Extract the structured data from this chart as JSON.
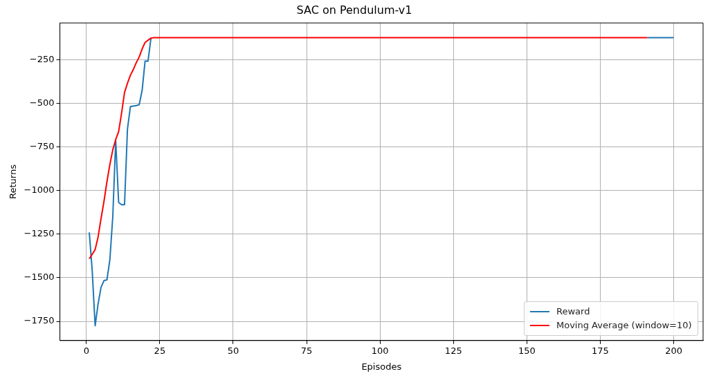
{
  "chart_data": {
    "type": "line",
    "title": "SAC on Pendulum-v1",
    "xlabel": "Episodes",
    "ylabel": "Returns",
    "series": [
      {
        "name": "Reward",
        "color": "#1f77b4",
        "x": [
          1,
          2,
          3,
          4,
          5,
          6,
          7,
          8,
          9,
          10,
          11,
          12,
          13,
          14,
          15,
          16,
          17,
          18,
          19,
          20,
          21,
          22,
          23,
          191,
          192,
          193,
          194,
          195,
          196,
          197,
          198,
          199,
          200
        ],
        "values": [
          -1240,
          -1460,
          -1775,
          -1650,
          -1555,
          -1516,
          -1512,
          -1398,
          -1150,
          -713,
          -1068,
          -1081,
          -1081,
          -647,
          -518,
          -515,
          -512,
          -507,
          -424,
          -257,
          -257,
          -125,
          null,
          -122,
          -122,
          -122,
          -122,
          -122,
          -122,
          -122,
          -122,
          -122,
          -122
        ]
      },
      {
        "name": "Moving Average (window=10)",
        "color": "#ff0000",
        "x": [
          1,
          2,
          3,
          4,
          5,
          6,
          7,
          8,
          9,
          10,
          11,
          12,
          13,
          14,
          15,
          16,
          17,
          18,
          19,
          20,
          21,
          22,
          23,
          24,
          25,
          26,
          27,
          28,
          29,
          30,
          31,
          32,
          33,
          34,
          35,
          36,
          37,
          38,
          39,
          40,
          41,
          42,
          43,
          44,
          45,
          46,
          47,
          48,
          49,
          50,
          51,
          52,
          53,
          54,
          55,
          56,
          57,
          58,
          59,
          60,
          61,
          62,
          63,
          64,
          65,
          66,
          67,
          68,
          69,
          70,
          71,
          72,
          73,
          74,
          75,
          76,
          77,
          78,
          79,
          80,
          81,
          82,
          83,
          84,
          85,
          86,
          87,
          88,
          89,
          90,
          91,
          92,
          93,
          94,
          95,
          96,
          97,
          98,
          99,
          100,
          101,
          102,
          103,
          104,
          105,
          106,
          107,
          108,
          109,
          110,
          111,
          112,
          113,
          114,
          115,
          116,
          117,
          118,
          119,
          120,
          121,
          122,
          123,
          124,
          125,
          126,
          127,
          128,
          129,
          130,
          131,
          132,
          133,
          134,
          135,
          136,
          137,
          138,
          139,
          140,
          141,
          142,
          143,
          144,
          145,
          146,
          147,
          148,
          149,
          150,
          151,
          152,
          153,
          154,
          155,
          156,
          157,
          158,
          159,
          160,
          161,
          162,
          163,
          164,
          165,
          166,
          167,
          168,
          169,
          170,
          171,
          172,
          173,
          174,
          175,
          176,
          177,
          178,
          179,
          180,
          181,
          182,
          183,
          184,
          185,
          186,
          187,
          188,
          189,
          190,
          191
        ],
        "values": [
          -1391,
          -1365,
          -1338,
          -1266,
          -1161,
          -1062,
          -950,
          -851,
          -766,
          -707,
          -661,
          -555,
          -437,
          -384,
          -338,
          -305,
          -266,
          -233,
          -187,
          -150,
          -137,
          -125,
          -122,
          -122,
          -122,
          -122,
          -122,
          -122,
          -122,
          -122,
          -122,
          -122,
          -122,
          -122,
          -122,
          -122,
          -122,
          -122,
          -122,
          -122,
          -122,
          -122,
          -122,
          -122,
          -122,
          -122,
          -122,
          -122,
          -122,
          -122,
          -122,
          -122,
          -122,
          -122,
          -122,
          -122,
          -122,
          -122,
          -122,
          -122,
          -122,
          -122,
          -122,
          -122,
          -122,
          -122,
          -122,
          -122,
          -122,
          -122,
          -122,
          -122,
          -122,
          -122,
          -122,
          -122,
          -122,
          -122,
          -122,
          -122,
          -122,
          -122,
          -122,
          -122,
          -122,
          -122,
          -122,
          -122,
          -122,
          -122,
          -122,
          -122,
          -122,
          -122,
          -122,
          -122,
          -122,
          -122,
          -122,
          -122,
          -122,
          -122,
          -122,
          -122,
          -122,
          -122,
          -122,
          -122,
          -122,
          -122,
          -122,
          -122,
          -122,
          -122,
          -122,
          -122,
          -122,
          -122,
          -122,
          -122,
          -122,
          -122,
          -122,
          -122,
          -122,
          -122,
          -122,
          -122,
          -122,
          -122,
          -122,
          -122,
          -122,
          -122,
          -122,
          -122,
          -122,
          -122,
          -122,
          -122,
          -122,
          -122,
          -122,
          -122,
          -122,
          -122,
          -122,
          -122,
          -122,
          -122,
          -122,
          -122,
          -122,
          -122,
          -122,
          -122,
          -122,
          -122,
          -122,
          -122,
          -122,
          -122,
          -122,
          -122,
          -122,
          -122,
          -122,
          -122,
          -122,
          -122,
          -122,
          -122,
          -122,
          -122,
          -122,
          -122,
          -122,
          -122,
          -122,
          -122,
          -122,
          -122,
          -122,
          -122,
          -122,
          -122,
          -122,
          -122,
          -122,
          -122,
          -122
        ]
      }
    ],
    "xlim": [
      -9,
      210
    ],
    "xticks": [
      0,
      25,
      50,
      75,
      100,
      125,
      150,
      175,
      200
    ],
    "ylim": [
      -1860,
      -38
    ],
    "yticks": [
      -1750,
      -1500,
      -1250,
      -1000,
      -750,
      -500,
      -250
    ],
    "grid": true,
    "legend": "bottom right",
    "marker": "none",
    "line_style": "solid"
  }
}
